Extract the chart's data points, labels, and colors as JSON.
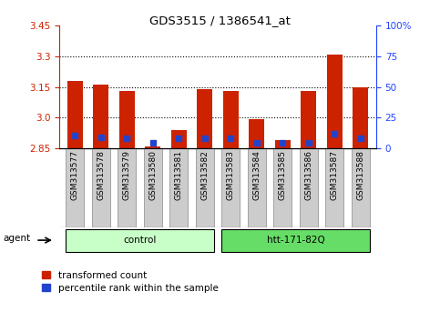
{
  "title": "GDS3515 / 1386541_at",
  "samples": [
    "GSM313577",
    "GSM313578",
    "GSM313579",
    "GSM313580",
    "GSM313581",
    "GSM313582",
    "GSM313583",
    "GSM313584",
    "GSM313585",
    "GSM313586",
    "GSM313587",
    "GSM313588"
  ],
  "red_values": [
    3.18,
    3.16,
    3.13,
    2.856,
    2.94,
    3.14,
    3.13,
    2.99,
    2.89,
    3.13,
    3.31,
    3.15
  ],
  "blue_values": [
    2.912,
    2.903,
    2.897,
    2.878,
    2.897,
    2.897,
    2.897,
    2.878,
    2.878,
    2.878,
    2.92,
    2.897
  ],
  "y_min": 2.85,
  "y_max": 3.45,
  "y_ticks_left": [
    2.85,
    3.0,
    3.15,
    3.3,
    3.45
  ],
  "y_ticks_right_vals": [
    0,
    25,
    50,
    75,
    100
  ],
  "y_ticks_right_labels": [
    "0",
    "25",
    "50",
    "75",
    "100%"
  ],
  "dotted_lines": [
    3.0,
    3.15,
    3.3
  ],
  "groups": [
    {
      "label": "control",
      "start": 0,
      "end": 5,
      "color": "#c8ffc8"
    },
    {
      "label": "htt-171-82Q",
      "start": 6,
      "end": 11,
      "color": "#66dd66"
    }
  ],
  "agent_label": "agent",
  "bar_color": "#cc2200",
  "blue_color": "#2244cc",
  "bar_width": 0.6,
  "left_axis_color": "#cc2200",
  "right_axis_color": "#2244ff",
  "legend_red": "transformed count",
  "legend_blue": "percentile rank within the sample"
}
